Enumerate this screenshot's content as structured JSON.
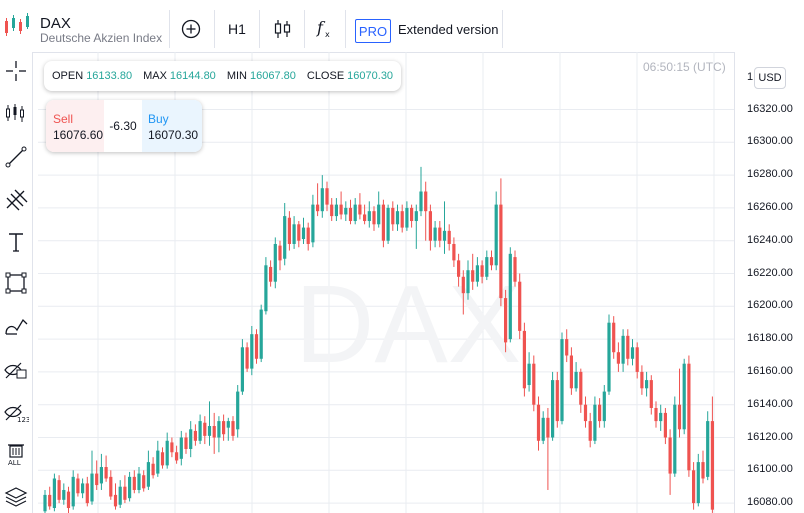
{
  "header": {
    "symbol": "DAX",
    "description": "Deutsche Akzien Index",
    "timeframe": "H1",
    "indicators_icon": "fx-icon",
    "pro_badge": "PRO",
    "extended_label": "Extended version"
  },
  "sidebar": {
    "tools": [
      "crosshair-icon",
      "candles-icon",
      "trend-line-icon",
      "fib-tool-icon",
      "text-icon",
      "rectangle-icon",
      "brush-icon",
      "hide-drawings-icon",
      "hide-indicators-icon",
      "remove-all-icon",
      "layers-icon"
    ]
  },
  "ohlc": {
    "open_label": "OPEN",
    "open": "16133.80",
    "max_label": "MAX",
    "max": "16144.80",
    "min_label": "MIN",
    "min": "16067.80",
    "close_label": "CLOSE",
    "close": "16070.30"
  },
  "trade": {
    "sell_label": "Sell",
    "sell_price": "16076.60",
    "spread": "-6.30",
    "buy_label": "Buy",
    "buy_price": "16070.30"
  },
  "chart": {
    "time": "06:50:15 (UTC)",
    "watermark": "DAX",
    "currency": "USD",
    "top_tick_partial": "1",
    "price_ticks": [
      "16320.00",
      "16300.00",
      "16280.00",
      "16260.00",
      "16240.00",
      "16220.00",
      "16200.00",
      "16180.00",
      "16160.00",
      "16140.00",
      "16120.00",
      "16100.00",
      "16080.00"
    ],
    "colors": {
      "up": "#26a69a",
      "down": "#ef5350",
      "grid": "#e9ecf1"
    }
  },
  "chart_data": {
    "type": "candlestick",
    "ylim": [
      16076,
      16345
    ],
    "candles": [
      [
        16075,
        16085,
        16072,
        16088
      ],
      [
        16085,
        16078,
        16076,
        16090
      ],
      [
        16077,
        16095,
        16075,
        16098
      ],
      [
        16094,
        16082,
        16080,
        16097
      ],
      [
        16082,
        16088,
        16079,
        16092
      ],
      [
        16087,
        16077,
        16074,
        16090
      ],
      [
        16078,
        16096,
        16076,
        16100
      ],
      [
        16095,
        16086,
        16084,
        16098
      ],
      [
        16086,
        16092,
        16083,
        16095
      ],
      [
        16092,
        16080,
        16078,
        16096
      ],
      [
        16081,
        16098,
        16079,
        16112
      ],
      [
        16098,
        16091,
        16088,
        16106
      ],
      [
        16092,
        16102,
        16088,
        16110
      ],
      [
        16102,
        16095,
        16093,
        16109
      ],
      [
        16096,
        16084,
        16082,
        16100
      ],
      [
        16085,
        16078,
        16076,
        16092
      ],
      [
        16079,
        16090,
        16077,
        16094
      ],
      [
        16090,
        16082,
        16080,
        16097
      ],
      [
        16083,
        16096,
        16081,
        16099
      ],
      [
        16096,
        16088,
        16086,
        16100
      ],
      [
        16088,
        16098,
        16086,
        16102
      ],
      [
        16097,
        16089,
        16087,
        16100
      ],
      [
        16090,
        16105,
        16088,
        16112
      ],
      [
        16104,
        16097,
        16095,
        16108
      ],
      [
        16098,
        16112,
        16096,
        16118
      ],
      [
        16111,
        16103,
        16101,
        16114
      ],
      [
        16103,
        16118,
        16101,
        16123
      ],
      [
        16117,
        16111,
        16108,
        16120
      ],
      [
        16111,
        16106,
        16104,
        16115
      ],
      [
        16107,
        16120,
        16103,
        16124
      ],
      [
        16120,
        16113,
        16110,
        16123
      ],
      [
        16113,
        16125,
        16108,
        16130
      ],
      [
        16124,
        16118,
        16115,
        16128
      ],
      [
        16118,
        16130,
        16116,
        16134
      ],
      [
        16129,
        16121,
        16116,
        16133
      ],
      [
        16121,
        16127,
        16115,
        16142
      ],
      [
        16127,
        16120,
        16110,
        16135
      ],
      [
        16120,
        16130,
        16111,
        16133
      ],
      [
        16130,
        16122,
        16118,
        16134
      ],
      [
        16126,
        16130,
        16118,
        16132
      ],
      [
        16130,
        16121,
        16118,
        16133
      ],
      [
        16125,
        16148,
        16120,
        16152
      ],
      [
        16148,
        16175,
        16146,
        16180
      ],
      [
        16175,
        16162,
        16160,
        16178
      ],
      [
        16162,
        16183,
        16158,
        16188
      ],
      [
        16183,
        16168,
        16165,
        16186
      ],
      [
        16168,
        16198,
        16166,
        16201
      ],
      [
        16197,
        16225,
        16195,
        16230
      ],
      [
        16224,
        16215,
        16212,
        16228
      ],
      [
        16215,
        16238,
        16211,
        16242
      ],
      [
        16237,
        16228,
        16222,
        16240
      ],
      [
        16229,
        16255,
        16225,
        16263
      ],
      [
        16254,
        16238,
        16234,
        16258
      ],
      [
        16238,
        16250,
        16235,
        16255
      ],
      [
        16250,
        16240,
        16236,
        16252
      ],
      [
        16241,
        16248,
        16238,
        16254
      ],
      [
        16248,
        16238,
        16234,
        16251
      ],
      [
        16239,
        16262,
        16236,
        16268
      ],
      [
        16262,
        16258,
        16255,
        16275
      ],
      [
        16258,
        16272,
        16254,
        16280
      ],
      [
        16272,
        16262,
        16258,
        16276
      ],
      [
        16262,
        16255,
        16252,
        16266
      ],
      [
        16255,
        16262,
        16252,
        16266
      ],
      [
        16262,
        16256,
        16253,
        16270
      ],
      [
        16256,
        16260,
        16252,
        16264
      ],
      [
        16260,
        16252,
        16250,
        16265
      ],
      [
        16252,
        16262,
        16250,
        16266
      ],
      [
        16262,
        16256,
        16253,
        16269
      ],
      [
        16256,
        16252,
        16250,
        16262
      ],
      [
        16252,
        16258,
        16248,
        16264
      ],
      [
        16258,
        16250,
        16246,
        16261
      ],
      [
        16250,
        16262,
        16248,
        16270
      ],
      [
        16262,
        16240,
        16236,
        16265
      ],
      [
        16240,
        16260,
        16238,
        16262
      ],
      [
        16260,
        16250,
        16246,
        16264
      ],
      [
        16250,
        16258,
        16246,
        16262
      ],
      [
        16258,
        16248,
        16245,
        16262
      ],
      [
        16248,
        16260,
        16246,
        16264
      ],
      [
        16260,
        16252,
        16248,
        16262
      ],
      [
        16252,
        16258,
        16235,
        16262
      ],
      [
        16258,
        16270,
        16255,
        16285
      ],
      [
        16270,
        16258,
        16240,
        16276
      ],
      [
        16258,
        16240,
        16234,
        16262
      ],
      [
        16240,
        16248,
        16236,
        16252
      ],
      [
        16248,
        16240,
        16236,
        16252
      ],
      [
        16240,
        16246,
        16232,
        16264
      ],
      [
        16246,
        16238,
        16234,
        16250
      ],
      [
        16238,
        16228,
        16224,
        16242
      ],
      [
        16228,
        16218,
        16212,
        16232
      ],
      [
        16218,
        16208,
        16195,
        16222
      ],
      [
        16208,
        16222,
        16204,
        16228
      ],
      [
        16222,
        16215,
        16210,
        16232
      ],
      [
        16215,
        16225,
        16212,
        16230
      ],
      [
        16225,
        16218,
        16214,
        16228
      ],
      [
        16218,
        16230,
        16216,
        16234
      ],
      [
        16230,
        16225,
        16222,
        16234
      ],
      [
        16225,
        16262,
        16222,
        16270
      ],
      [
        16262,
        16205,
        16200,
        16278
      ],
      [
        16205,
        16178,
        16172,
        16210
      ],
      [
        16180,
        16232,
        16178,
        16236
      ],
      [
        16230,
        16215,
        16212,
        16234
      ],
      [
        16215,
        16185,
        16180,
        16220
      ],
      [
        16185,
        16150,
        16145,
        16190
      ],
      [
        16152,
        16165,
        16148,
        16172
      ],
      [
        16165,
        16140,
        16136,
        16170
      ],
      [
        16140,
        16118,
        16112,
        16145
      ],
      [
        16118,
        16132,
        16116,
        16136
      ],
      [
        16132,
        16120,
        16088,
        16138
      ],
      [
        16120,
        16155,
        16118,
        16160
      ],
      [
        16155,
        16130,
        16126,
        16160
      ],
      [
        16130,
        16180,
        16128,
        16184
      ],
      [
        16180,
        16170,
        16166,
        16186
      ],
      [
        16170,
        16150,
        16146,
        16175
      ],
      [
        16150,
        16160,
        16148,
        16166
      ],
      [
        16160,
        16140,
        16135,
        16162
      ],
      [
        16140,
        16130,
        16126,
        16145
      ],
      [
        16130,
        16118,
        16114,
        16135
      ],
      [
        16118,
        16140,
        16116,
        16145
      ],
      [
        16140,
        16130,
        16126,
        16144
      ],
      [
        16130,
        16148,
        16126,
        16152
      ],
      [
        16148,
        16190,
        16146,
        16195
      ],
      [
        16190,
        16172,
        16168,
        16194
      ],
      [
        16172,
        16165,
        16160,
        16178
      ],
      [
        16165,
        16182,
        16160,
        16186
      ],
      [
        16182,
        16168,
        16164,
        16186
      ],
      [
        16168,
        16175,
        16164,
        16180
      ],
      [
        16175,
        16160,
        16156,
        16178
      ],
      [
        16160,
        16150,
        16146,
        16164
      ],
      [
        16150,
        16155,
        16145,
        16160
      ],
      [
        16155,
        16138,
        16134,
        16158
      ],
      [
        16138,
        16130,
        16126,
        16142
      ],
      [
        16130,
        16135,
        16124,
        16140
      ],
      [
        16135,
        16120,
        16116,
        16138
      ],
      [
        16120,
        16098,
        16085,
        16125
      ],
      [
        16098,
        16140,
        16096,
        16145
      ],
      [
        16140,
        16125,
        16120,
        16162
      ],
      [
        16125,
        16165,
        16122,
        16168
      ],
      [
        16165,
        16100,
        16096,
        16170
      ],
      [
        16100,
        16080,
        16076,
        16105
      ],
      [
        16080,
        16105,
        16078,
        16110
      ],
      [
        16105,
        16095,
        16092,
        16112
      ],
      [
        16096,
        16130,
        16094,
        16136
      ],
      [
        16130,
        16076,
        16074,
        16145
      ]
    ]
  }
}
